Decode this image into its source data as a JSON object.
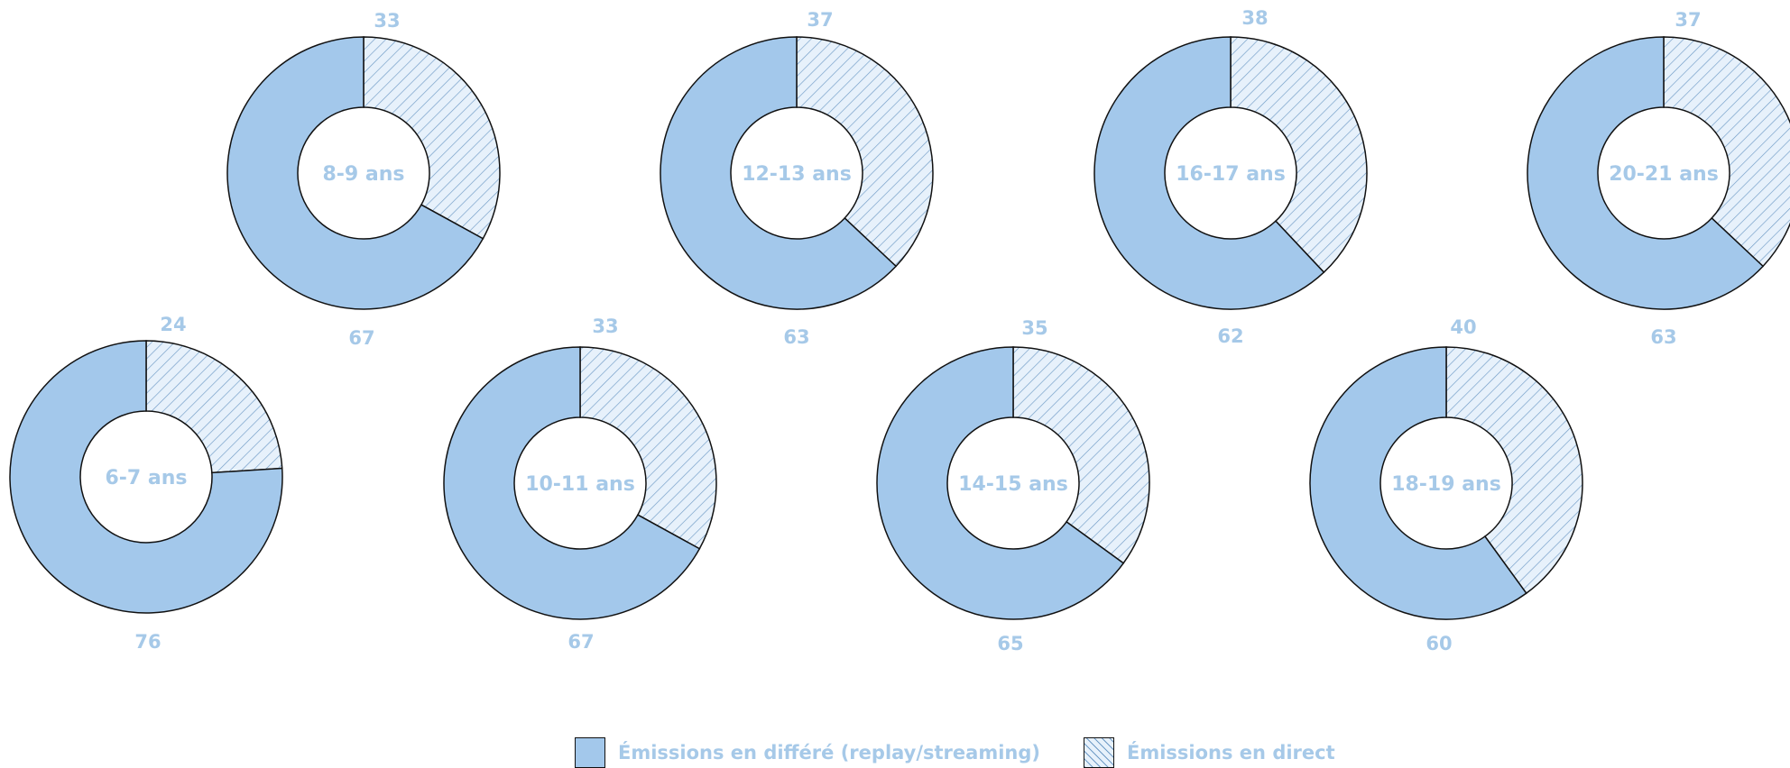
{
  "chart_data": {
    "type": "pie",
    "subtype": "donut",
    "series_names": [
      "Émissions en différé (replay/streaming)",
      "Émissions en direct"
    ],
    "colors": {
      "differe": "#a3c8eb",
      "direct_fill": "#e7f1fb",
      "direct_hatch": "#6f9bc6",
      "outline": "#111111",
      "label": "#a6c9e8"
    },
    "donuts": [
      {
        "category": "8-9 ans",
        "differe": 67,
        "direct": 33
      },
      {
        "category": "12-13 ans",
        "differe": 63,
        "direct": 37
      },
      {
        "category": "16-17 ans",
        "differe": 62,
        "direct": 38
      },
      {
        "category": "20-21 ans",
        "differe": 63,
        "direct": 37
      },
      {
        "category": "6-7 ans",
        "differe": 76,
        "direct": 24
      },
      {
        "category": "10-11 ans",
        "differe": 67,
        "direct": 33
      },
      {
        "category": "14-15 ans",
        "differe": 65,
        "direct": 35
      },
      {
        "category": "18-19 ans",
        "differe": 60,
        "direct": 40
      }
    ]
  },
  "legend": {
    "placement": "bottom-center",
    "items": [
      {
        "label": "Émissions en différé (replay/streaming)",
        "style": "solid"
      },
      {
        "label": "Émissions en direct",
        "style": "hatched"
      }
    ]
  }
}
